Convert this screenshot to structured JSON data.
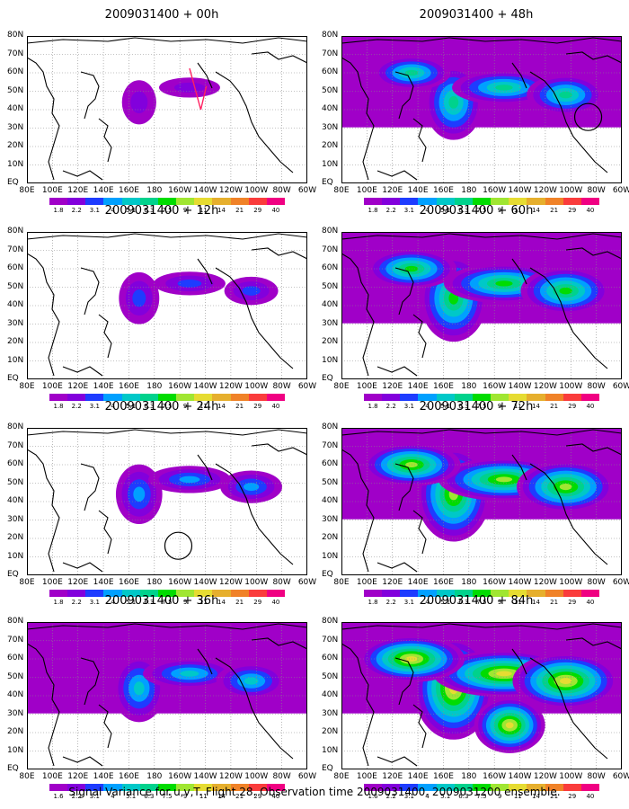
{
  "panels": [
    {
      "title": "2009031400 + 00h",
      "intensity": 0.15,
      "circle": false,
      "trace": true
    },
    {
      "title": "2009031400 + 48h",
      "intensity": 0.55,
      "circle": true,
      "trace": false
    },
    {
      "title": "2009031400 + 12h",
      "intensity": 0.25,
      "circle": false,
      "trace": false
    },
    {
      "title": "2009031400 + 60h",
      "intensity": 0.7,
      "circle": false,
      "trace": false
    },
    {
      "title": "2009031400 + 24h",
      "intensity": 0.35,
      "circle": true,
      "trace": false
    },
    {
      "title": "2009031400 + 72h",
      "intensity": 0.8,
      "circle": false,
      "trace": false
    },
    {
      "title": "2009031400 + 36h",
      "intensity": 0.45,
      "circle": false,
      "trace": false
    },
    {
      "title": "2009031400 + 84h",
      "intensity": 0.9,
      "circle": false,
      "trace": false
    }
  ],
  "lat_labels": [
    "80N",
    "70N",
    "60N",
    "50N",
    "40N",
    "30N",
    "20N",
    "10N",
    "EQ"
  ],
  "lon_labels": [
    "80E",
    "100E",
    "120E",
    "140E",
    "160E",
    "180",
    "160W",
    "140W",
    "120W",
    "100W",
    "80W",
    "60W"
  ],
  "colorbar": {
    "colors": [
      "#a000c8",
      "#8200dc",
      "#1e3cff",
      "#00a0ff",
      "#00c8c8",
      "#00d28c",
      "#00dc00",
      "#a0e632",
      "#e6dc32",
      "#e6af2d",
      "#f08228",
      "#fa3c3c",
      "#f00082"
    ],
    "labels": [
      "1.8",
      "2.2",
      "3.1",
      "4",
      "5.1",
      "6.3",
      "7.5",
      "9",
      "11",
      "14",
      "21",
      "29",
      "40"
    ],
    "labels_alt": [
      "1.6",
      "2.2",
      "3.1",
      "4",
      "5.1",
      "6.3",
      "7.5",
      "9",
      "11",
      "14",
      "21",
      "29",
      "40"
    ]
  },
  "caption": "Signal Variance for u,v,T. Flight 28. Observation time 2009031400. 2009031200 ensemble."
}
